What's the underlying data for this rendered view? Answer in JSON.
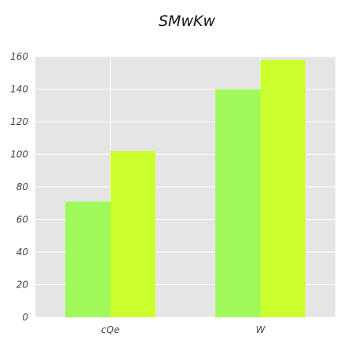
{
  "chart_data": {
    "type": "bar",
    "title": "SMwKw",
    "xlabel": "",
    "ylabel": "",
    "categories": [
      "cQe",
      "W"
    ],
    "series": [
      {
        "values": [
          71,
          140
        ],
        "color": "#a0f95a"
      },
      {
        "values": [
          102,
          158
        ],
        "color": "#ccff2e"
      }
    ],
    "ylim": [
      0,
      160
    ],
    "yticks": [
      0,
      20,
      40,
      60,
      80,
      100,
      120,
      140,
      160
    ],
    "grid": true,
    "background": "#e5e5e5",
    "grid_color": "#ffffff"
  }
}
